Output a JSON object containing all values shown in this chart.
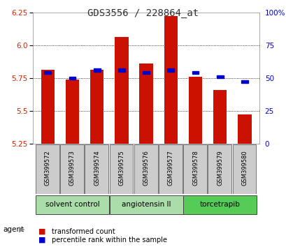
{
  "title": "GDS3556 / 228864_at",
  "samples": [
    "GSM399572",
    "GSM399573",
    "GSM399574",
    "GSM399575",
    "GSM399576",
    "GSM399577",
    "GSM399578",
    "GSM399579",
    "GSM399580"
  ],
  "red_values": [
    5.81,
    5.74,
    5.81,
    6.06,
    5.86,
    6.22,
    5.76,
    5.66,
    5.47
  ],
  "blue_values": [
    54,
    50,
    56,
    56,
    54,
    56,
    54,
    51,
    47
  ],
  "ylim_left": [
    5.25,
    6.25
  ],
  "ylim_right": [
    0,
    100
  ],
  "yticks_left": [
    5.25,
    5.5,
    5.75,
    6.0,
    6.25
  ],
  "yticks_right": [
    0,
    25,
    50,
    75,
    100
  ],
  "ytick_labels_right": [
    "0",
    "25",
    "50",
    "75",
    "100%"
  ],
  "bar_color": "#cc1100",
  "blue_color": "#0000cc",
  "baseline": 5.25,
  "bar_width": 0.55,
  "grid_color": "#000000",
  "background_color": "#ffffff",
  "left_tick_color": "#cc2200",
  "right_tick_color": "#0000cc",
  "group_configs": [
    [
      0,
      2,
      "solvent control",
      "#aaddaa"
    ],
    [
      3,
      5,
      "angiotensin II",
      "#aaddaa"
    ],
    [
      6,
      8,
      "torcetrapib",
      "#55cc55"
    ]
  ]
}
